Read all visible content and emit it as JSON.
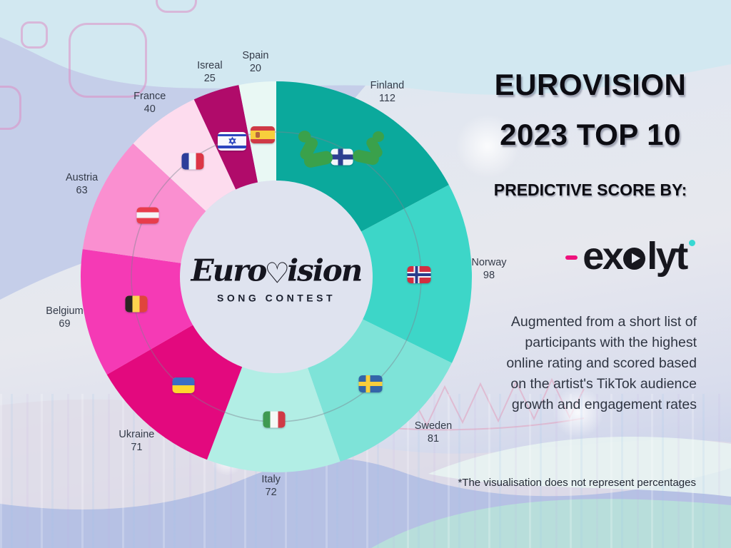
{
  "header": {
    "title_line1": "EUROVISION",
    "title_line2": "2023 TOP 10",
    "subtitle": "PREDICTIVE SCORE BY:"
  },
  "brand": {
    "name": "exolyt",
    "pre_o": "ex",
    "post_o": "lyt",
    "accent_pink": "#ef117c",
    "accent_teal": "#37d8d3"
  },
  "description": {
    "lines": [
      "Augmented from a short list of",
      "participants with the highest",
      "online rating and scored based",
      "on the artist's TikTok audience",
      "growth and engagement rates"
    ]
  },
  "footnote": "*The visualisation does not represent percentages",
  "center_logo": {
    "word_start": "Euro",
    "heart": "♡",
    "word_end": "ision",
    "tagline": "SONG CONTEST"
  },
  "chart_data": {
    "type": "pie",
    "variant": "donut",
    "title": "Eurovision 2023 Top 10 — predictive scores",
    "order": "clockwise-from-top",
    "categories": [
      "Finland",
      "Norway",
      "Sweden",
      "Italy",
      "Ukraine",
      "Belgium",
      "Austria",
      "France",
      "Isreal",
      "Spain"
    ],
    "values": [
      112,
      98,
      81,
      72,
      71,
      69,
      63,
      40,
      25,
      20
    ],
    "colors": [
      "#0BA99C",
      "#3DD6C8",
      "#7EE3D8",
      "#B2EEE5",
      "#E3097E",
      "#F53AB5",
      "#FA8FD0",
      "#FDDCEE",
      "#B00B6A",
      "#E9F8F4"
    ],
    "flags": [
      "finland",
      "norway",
      "sweden",
      "italy",
      "ukraine",
      "belgium",
      "austria",
      "france",
      "israel",
      "spain"
    ],
    "legend": "none",
    "note": "*The visualisation does not represent percentages"
  }
}
